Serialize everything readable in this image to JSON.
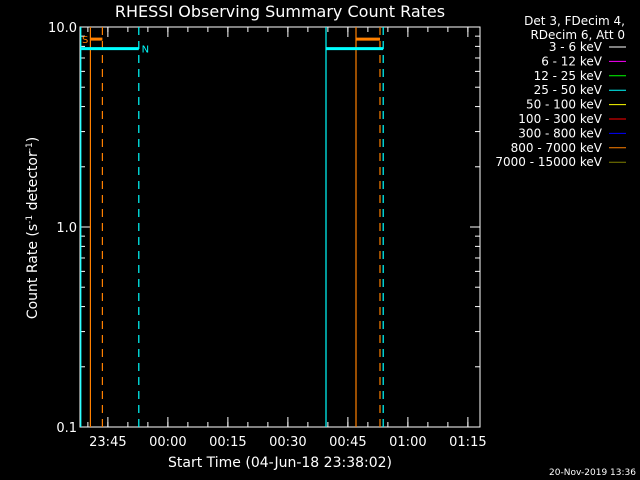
{
  "chart_data": {
    "type": "line",
    "title": "RHESSI Observing Summary Count Rates",
    "xlabel": "Start Time (04-Jun-18 23:38:02)",
    "ylabel_main": "Count Rate (s",
    "ylabel_sup1": "-1",
    "ylabel_mid": " detector",
    "ylabel_sup2": "-1",
    "ylabel_end": ")",
    "y_scale": "log",
    "ylim": [
      0.1,
      10.0
    ],
    "y_ticks": [
      {
        "value": 10.0,
        "label": "10.0"
      },
      {
        "value": 1.0,
        "label": "1.0"
      },
      {
        "value": 0.1,
        "label": "0.1"
      }
    ],
    "xlim_minutes": [
      0,
      100
    ],
    "x_ticks": [
      {
        "minute": 6.97,
        "label": "23:45"
      },
      {
        "minute": 21.97,
        "label": "00:00"
      },
      {
        "minute": 36.97,
        "label": "00:15"
      },
      {
        "minute": 51.97,
        "label": "00:30"
      },
      {
        "minute": 66.97,
        "label": "00:45"
      },
      {
        "minute": 81.97,
        "label": "01:00"
      },
      {
        "minute": 96.97,
        "label": "01:15"
      }
    ],
    "legend": {
      "placement": "right",
      "header": [
        "Det 3, FDecim 4,",
        "RDecim 6, Att 0"
      ],
      "entries": [
        {
          "label": "3 - 6 keV",
          "color": "#ffffff"
        },
        {
          "label": "6 - 12 keV",
          "color": "#ff00ff"
        },
        {
          "label": "12 - 25 keV",
          "color": "#00ff00"
        },
        {
          "label": "25 - 50 keV",
          "color": "#00ffff"
        },
        {
          "label": "50 - 100 keV",
          "color": "#ffff00"
        },
        {
          "label": "100 - 300 keV",
          "color": "#ff0000"
        },
        {
          "label": "300 - 800 keV",
          "color": "#0000ff"
        },
        {
          "label": "800 - 7000 keV",
          "color": "#ff8000"
        },
        {
          "label": "7000 - 15000 keV",
          "color": "#808000"
        }
      ]
    },
    "series": [
      {
        "color": "#00ffff",
        "segments": [
          [
            0.2,
            14.7
          ],
          [
            61.5,
            75.8
          ]
        ],
        "value": 7.8
      },
      {
        "color": "#ff8000",
        "segments": [
          [
            2.6,
            5.6
          ],
          [
            69.0,
            75.0
          ]
        ],
        "value": 8.7
      }
    ],
    "vertical_markers": [
      {
        "minute": 0.2,
        "color": "#00ffff",
        "style": "solid"
      },
      {
        "minute": 2.6,
        "color": "#ff8000",
        "style": "solid"
      },
      {
        "minute": 5.6,
        "color": "#ff8000",
        "style": "dashed"
      },
      {
        "minute": 14.7,
        "color": "#00ffff",
        "style": "dashed"
      },
      {
        "minute": 61.5,
        "color": "#00ffff",
        "style": "solid"
      },
      {
        "minute": 69.0,
        "color": "#ff8000",
        "style": "solid"
      },
      {
        "minute": 75.0,
        "color": "#ff8000",
        "style": "dashed"
      },
      {
        "minute": 75.8,
        "color": "#00ffff",
        "style": "dashed"
      }
    ],
    "annotations": [
      {
        "text": "S",
        "minute": 0.5,
        "color": "#ff8000"
      },
      {
        "text": "N",
        "minute": 15.4,
        "color": "#00ffff"
      }
    ]
  },
  "footer": {
    "timestamp": "20-Nov-2019 13:36"
  }
}
